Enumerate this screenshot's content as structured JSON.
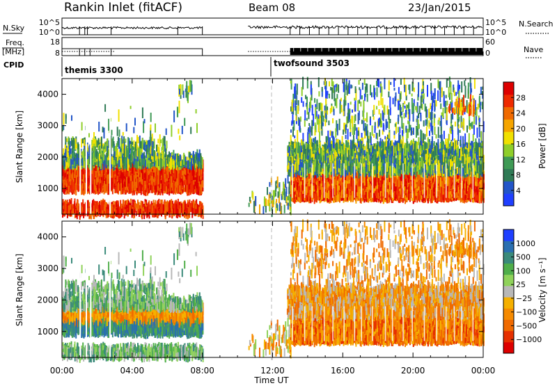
{
  "header": {
    "title": "Rankin Inlet (fitACF)",
    "beam": "Beam 08",
    "date": "23/Jan/2015"
  },
  "side_labels": {
    "nsky": "N.Sky",
    "freq": "Freq.",
    "mhz": "[MHz]",
    "cpid": "CPID",
    "nsearch": "N.Search",
    "nave": "Nave"
  },
  "cpid_labels": [
    "themis 3300",
    "twofsound 3503"
  ],
  "nsky_ticks": [
    "10^5",
    "10^0"
  ],
  "nsearch_ticks": [
    "10^5",
    "10^0"
  ],
  "freq_ticks": [
    "18",
    "8"
  ],
  "nave_ticks": [
    "60",
    "0"
  ],
  "chart_data": [
    {
      "type": "heatmap",
      "name": "power",
      "ylabel": "Slant Range [km]",
      "xlabel": "Time UT",
      "x_ticks": [
        "00:00",
        "04:00",
        "08:00",
        "12:00",
        "16:00",
        "20:00",
        "00:00"
      ],
      "y_ticks": [
        "1000",
        "2000",
        "3000",
        "4000"
      ],
      "ylim": [
        180,
        4500
      ],
      "xlim_hours": [
        0,
        24
      ],
      "colorbar_label": "Power [dB]",
      "colorbar_ticks": [
        "4",
        "8",
        "12",
        "16",
        "20",
        "24",
        "28"
      ],
      "colorbar_colors": [
        "#1f3fff",
        "#2255c8",
        "#2f7a55",
        "#3f9a55",
        "#8fce2a",
        "#f0e000",
        "#f5a500",
        "#f06a00",
        "#ee2a00",
        "#dd0000"
      ],
      "data_gaps_hours": [
        [
          8.0,
          10.6
        ]
      ],
      "main_band_km": [
        700,
        1700
      ]
    },
    {
      "type": "heatmap",
      "name": "velocity",
      "ylabel": "Slant Range [km]",
      "xlabel": "Time UT",
      "x_ticks": [
        "00:00",
        "04:00",
        "08:00",
        "12:00",
        "16:00",
        "20:00",
        "00:00"
      ],
      "y_ticks": [
        "1000",
        "2000",
        "3000",
        "4000"
      ],
      "ylim": [
        180,
        4500
      ],
      "colorbar_label": "Velocity [m s⁻¹]",
      "colorbar_ticks": [
        "1000",
        "500",
        "100",
        "25",
        "−25",
        "−100",
        "−500",
        "−1000"
      ],
      "colorbar_colors": [
        "#1f3fff",
        "#2a6fb0",
        "#3a8a7a",
        "#4fae4a",
        "#8fd25a",
        "#b8b8b8",
        "#f5b000",
        "#f58a00",
        "#f06a00",
        "#e63000",
        "#dd0000"
      ]
    }
  ],
  "time_label": "Time UT"
}
